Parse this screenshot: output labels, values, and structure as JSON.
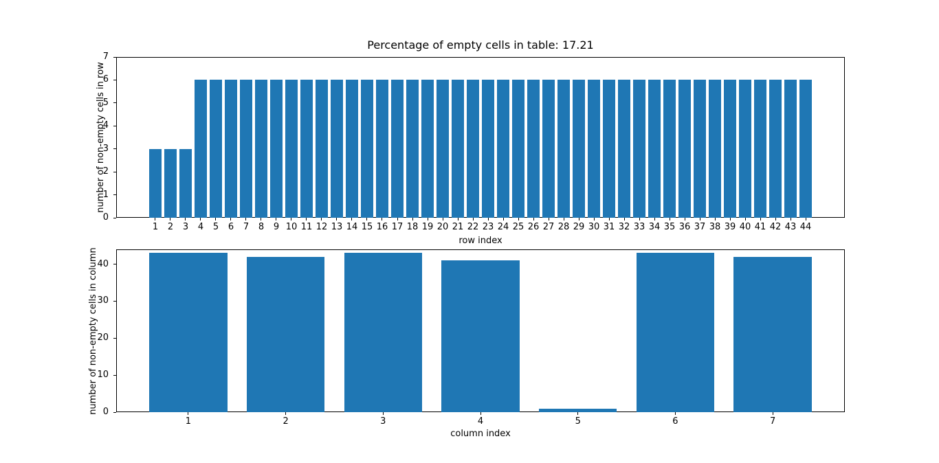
{
  "figure": {
    "background_color": "#ffffff",
    "text_color": "#000000"
  },
  "chart_data": [
    {
      "type": "bar",
      "title": "Percentage of empty cells in table: 17.21",
      "xlabel": "row index",
      "ylabel": "number of non-empty cells in row",
      "categories": [
        1,
        2,
        3,
        4,
        5,
        6,
        7,
        8,
        9,
        10,
        11,
        12,
        13,
        14,
        15,
        16,
        17,
        18,
        19,
        20,
        21,
        22,
        23,
        24,
        25,
        26,
        27,
        28,
        29,
        30,
        31,
        32,
        33,
        34,
        35,
        36,
        37,
        38,
        39,
        40,
        41,
        42,
        43,
        44
      ],
      "values": [
        3,
        3,
        3,
        6,
        6,
        6,
        6,
        6,
        6,
        6,
        6,
        6,
        6,
        6,
        6,
        6,
        6,
        6,
        6,
        6,
        6,
        6,
        6,
        6,
        6,
        6,
        6,
        6,
        6,
        6,
        6,
        6,
        6,
        6,
        6,
        6,
        6,
        6,
        6,
        6,
        6,
        6,
        6,
        6
      ],
      "ylim": [
        0,
        7
      ],
      "yticks": [
        0,
        1,
        2,
        3,
        4,
        5,
        6,
        7
      ],
      "bar_color": "#1f77b4",
      "bar_width_units": 0.8,
      "grid": false,
      "legend": null
    },
    {
      "type": "bar",
      "title": "",
      "xlabel": "column index",
      "ylabel": "number of non-empty cells in column",
      "categories": [
        1,
        2,
        3,
        4,
        5,
        6,
        7
      ],
      "values": [
        43,
        42,
        43,
        41,
        1,
        43,
        42
      ],
      "ylim": [
        0,
        44
      ],
      "yticks": [
        0,
        10,
        20,
        30,
        40
      ],
      "bar_color": "#1f77b4",
      "bar_width_units": 0.8,
      "grid": false,
      "legend": null
    }
  ]
}
